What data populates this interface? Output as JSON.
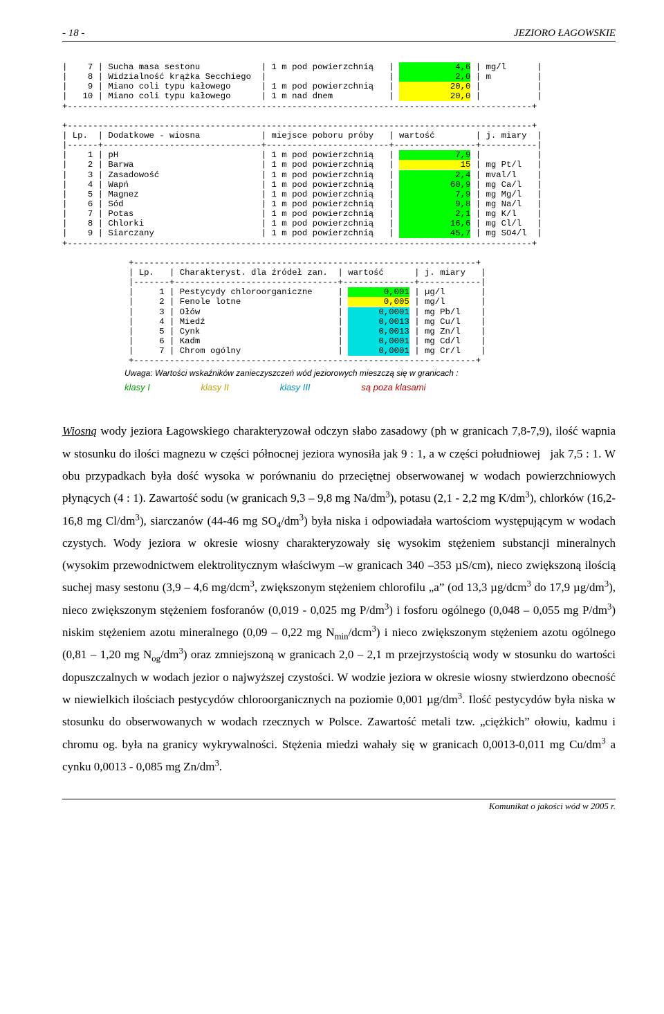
{
  "header": {
    "left": "- 18 -",
    "right": "JEZIORO ŁAGOWSKIE"
  },
  "table1": {
    "rows": [
      {
        "n": "7",
        "name": "Sucha masa sestonu",
        "loc": "1 m pod powierzchnią",
        "val": "4,6",
        "unit": "mg/l",
        "hl": "g"
      },
      {
        "n": "8",
        "name": "Widzialność krążka Secchiego",
        "loc": "",
        "val": "2,0",
        "unit": "m",
        "hl": "g"
      },
      {
        "n": "9",
        "name": "Miano coli typu kałowego",
        "loc": "1 m pod powierzchnią",
        "val": "20,0",
        "unit": "",
        "hl": "y"
      },
      {
        "n": "10",
        "name": "Miano coli typu kałowego",
        "loc": "1 m nad dnem",
        "val": "20,0",
        "unit": "",
        "hl": "y"
      }
    ]
  },
  "table2": {
    "title": {
      "lp": "Lp.",
      "name": "Dodatkowe - wiosna",
      "loc": "miejsce poboru próby",
      "val": "wartość",
      "unit": "j. miary"
    },
    "rows": [
      {
        "n": "1",
        "name": "pH",
        "loc": "1 m pod powierzchnią",
        "val": "7,9",
        "unit": "",
        "hl": "g"
      },
      {
        "n": "2",
        "name": "Barwa",
        "loc": "1 m pod powierzchnią",
        "val": "15",
        "unit": "mg Pt/l",
        "hl": "y"
      },
      {
        "n": "3",
        "name": "Zasadowość",
        "loc": "1 m pod powierzchnią",
        "val": "2,4",
        "unit": "mval/l",
        "hl": "g"
      },
      {
        "n": "4",
        "name": "Wapń",
        "loc": "1 m pod powierzchnią",
        "val": "60,9",
        "unit": "mg Ca/l",
        "hl": "g"
      },
      {
        "n": "5",
        "name": "Magnez",
        "loc": "1 m pod powierzchnią",
        "val": "7,9",
        "unit": "mg Mg/l",
        "hl": "g"
      },
      {
        "n": "6",
        "name": "Sód",
        "loc": "1 m pod powierzchnią",
        "val": "9,8",
        "unit": "mg Na/l",
        "hl": "g"
      },
      {
        "n": "7",
        "name": "Potas",
        "loc": "1 m pod powierzchnią",
        "val": "2,1",
        "unit": "mg K/l",
        "hl": "g"
      },
      {
        "n": "8",
        "name": "Chlorki",
        "loc": "1 m pod powierzchnią",
        "val": "16,6",
        "unit": "mg Cl/l",
        "hl": "g"
      },
      {
        "n": "9",
        "name": "Siarczany",
        "loc": "1 m pod powierzchnią",
        "val": "45,7",
        "unit": "mg SO4/l",
        "hl": "g"
      }
    ]
  },
  "table3": {
    "title": {
      "lp": "Lp.",
      "name": "Charakteryst. dla źródeł zan.",
      "val": "wartość",
      "unit": "j. miary"
    },
    "rows": [
      {
        "n": "1",
        "name": "Pestycydy chloroorganiczne",
        "val": "0,001",
        "unit": "µg/l",
        "hl": "g"
      },
      {
        "n": "2",
        "name": "Fenole lotne",
        "val": "0,005",
        "unit": "mg/l",
        "hl": "y"
      },
      {
        "n": "3",
        "name": "Ołów",
        "val": "0,0001",
        "unit": "mg Pb/l",
        "hl": "b"
      },
      {
        "n": "4",
        "name": "Miedź",
        "val": "0,0013",
        "unit": "mg Cu/l",
        "hl": "b"
      },
      {
        "n": "5",
        "name": "Cynk",
        "val": "0,0013",
        "unit": "mg Zn/l",
        "hl": "b"
      },
      {
        "n": "6",
        "name": "Kadm",
        "val": "0,0001",
        "unit": "mg Cd/l",
        "hl": "b"
      },
      {
        "n": "7",
        "name": "Chrom ogólny",
        "val": "0,0001",
        "unit": "mg Cr/l",
        "hl": "b"
      }
    ]
  },
  "note": "Uwaga: Wartości wskaźników zanieczyszczeń wód jeziorowych mieszczą się w granicach :",
  "classes": {
    "k1": "klasy I",
    "k2": "klasy II",
    "k3": "klasy  III",
    "k4": "są poza klasami"
  },
  "colors": {
    "green": "#00ff00",
    "yellow": "#ffff00",
    "cyan": "#00e0e0",
    "txt_green": "#00a000",
    "txt_yellow": "#c0a000",
    "txt_blue": "#0090c0",
    "txt_red": "#c00000"
  },
  "body": {
    "html": "<u class=\"em\">Wiosną</u> wody jeziora Łagowskiego charakteryzował odczyn słabo zasadowy (ph w granicach 7,8-7,9), ilość wapnia w stosunku do ilości magnezu w części północnej jeziora wynosiła jak 9 : 1, a w części południowej &nbsp;&nbsp;jak 7,5 : 1. W obu przypadkach była dość wysoka w porównaniu do przeciętnej obserwowanej w wodach powierzchniowych płynących (4 : 1). Zawartość sodu (w granicach 9,3 – 9,8 mg Na/dm<sup>3</sup>), potasu (2,1 - 2,2 mg K/dm<sup>3</sup>), chlorków (16,2-16,8 mg Cl/dm<sup>3</sup>), siarczanów (44-46 mg SO<sub>4</sub>/dm<sup>3</sup>) była niska i odpowiadała wartościom występującym w wodach czystych. Wody jeziora w okresie wiosny charakteryzowały się wysokim stężeniem substancji mineralnych (wysokim przewodnictwem elektrolitycznym właściwym –w granicach 340 –353 µS/cm), nieco zwiększoną ilością suchej masy sestonu (3,9 – 4,6 mg/dcm<sup>3</sup>, zwiększonym stężeniem chlorofilu „a” (od 13,3 µg/dcm<sup>3</sup> do 17,9 µg/dm<sup>3</sup>), nieco zwiększonym stężeniem fosforanów (0,019 - 0,025 mg P/dm<sup>3</sup>) i fosforu ogólnego (0,048 – 0,055 mg P/dm<sup>3</sup>) niskim stężeniem azotu mineralnego (0,09 – 0,22 mg N<sub>min</sub>/dcm<sup>3</sup>) i nieco zwiększonym stężeniem azotu ogólnego (0,81 – 1,20 mg N<sub>og</sub>/dm<sup>3</sup>) oraz zmniejszoną w granicach 2,0 – 2,1 m przejrzystością wody w stosunku do wartości dopuszczalnych w wodach jezior o najwyższej czystości. W wodzie jeziora w okresie wiosny stwierdzono obecność w niewielkich ilościach pestycydów chloroorganicznych na poziomie 0,001 µg/dm<sup>3</sup>. Ilość pestycydów była niska w stosunku do obserwowanych w wodach rzecznych w Polsce. Zawartość metali tzw. „ciężkich” ołowiu, kadmu i chromu og. była na granicy wykrywalności. Stężenia miedzi wahały się w granicach 0,0013-0,011 mg Cu/dm<sup>3</sup> a cynku 0,0013 - 0,085 mg Zn/dm<sup>3</sup>."
  },
  "footer": "Komunikat o jakości wód w 2005 r."
}
